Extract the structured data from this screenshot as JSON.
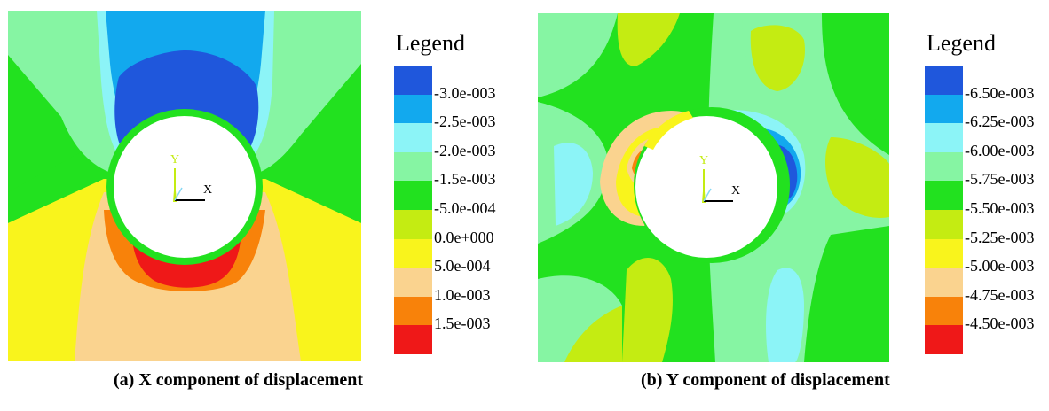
{
  "panel_a": {
    "legend_title": "Legend",
    "caption": "(a) X component of displacement",
    "axis_x": "X",
    "axis_y": "Y",
    "legend": [
      {
        "label": "-3.0e-003",
        "color": "#1f57dc"
      },
      {
        "label": "-2.5e-003",
        "color": "#12a9ee"
      },
      {
        "label": "-2.0e-003",
        "color": "#8cf4f7"
      },
      {
        "label": "-1.5e-003",
        "color": "#86f5a3"
      },
      {
        "label": "-5.0e-004",
        "color": "#22e11f"
      },
      {
        "label": "0.0e+000",
        "color": "#c4ec12"
      },
      {
        "label": "5.0e-004",
        "color": "#f9f41c"
      },
      {
        "label": "1.0e-003",
        "color": "#fad38f"
      },
      {
        "label": "1.5e-003",
        "color": "#f8820a"
      },
      {
        "label": "",
        "color": "#ef1818"
      }
    ]
  },
  "panel_b": {
    "legend_title": "Legend",
    "caption": "(b) Y component of displacement",
    "axis_x": "X",
    "axis_y": "Y",
    "legend": [
      {
        "label": "-6.50e-003",
        "color": "#1f57dc"
      },
      {
        "label": "-6.25e-003",
        "color": "#12a9ee"
      },
      {
        "label": "-6.00e-003",
        "color": "#8cf4f7"
      },
      {
        "label": "-5.75e-003",
        "color": "#86f5a3"
      },
      {
        "label": "-5.50e-003",
        "color": "#22e11f"
      },
      {
        "label": "-5.25e-003",
        "color": "#c4ec12"
      },
      {
        "label": "-5.00e-003",
        "color": "#f9f41c"
      },
      {
        "label": "-4.75e-003",
        "color": "#fad38f"
      },
      {
        "label": "-4.50e-003",
        "color": "#f8820a"
      },
      {
        "label": "",
        "color": "#ef1818"
      }
    ]
  }
}
